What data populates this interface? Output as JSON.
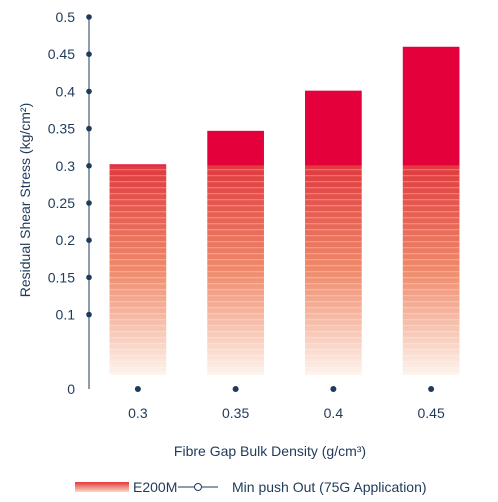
{
  "chart_data": {
    "type": "bar",
    "categories": [
      "0.3",
      "0.35",
      "0.4",
      "0.45"
    ],
    "series": [
      {
        "name": "E200M",
        "values": [
          0.302,
          0.347,
          0.401,
          0.46
        ]
      },
      {
        "name": "Min push Out (75G Application)",
        "values": [
          0,
          0,
          0,
          0
        ]
      }
    ],
    "gradient_top": 0.3,
    "xlabel": "Fibre Gap Bulk Density (g/cm³)",
    "ylabel": "Residual Shear Stress (kg/cm²)",
    "ylim": [
      0,
      0.5
    ],
    "yticks": [
      "0",
      "0.1",
      "0.15",
      "0.2",
      "0.25",
      "0.3",
      "0.35",
      "0.4",
      "0.45",
      "0.5"
    ],
    "ytick_values": [
      0,
      0.1,
      0.15,
      0.2,
      0.25,
      0.3,
      0.35,
      0.4,
      0.45,
      0.5
    ],
    "grid": false,
    "legend_position": "bottom",
    "colors": {
      "bar_top": "#e4003b",
      "bar_gradient_start": "#e03a3e",
      "bar_gradient_end": "#fdf3ec",
      "axis": "#1f3a5a"
    }
  }
}
